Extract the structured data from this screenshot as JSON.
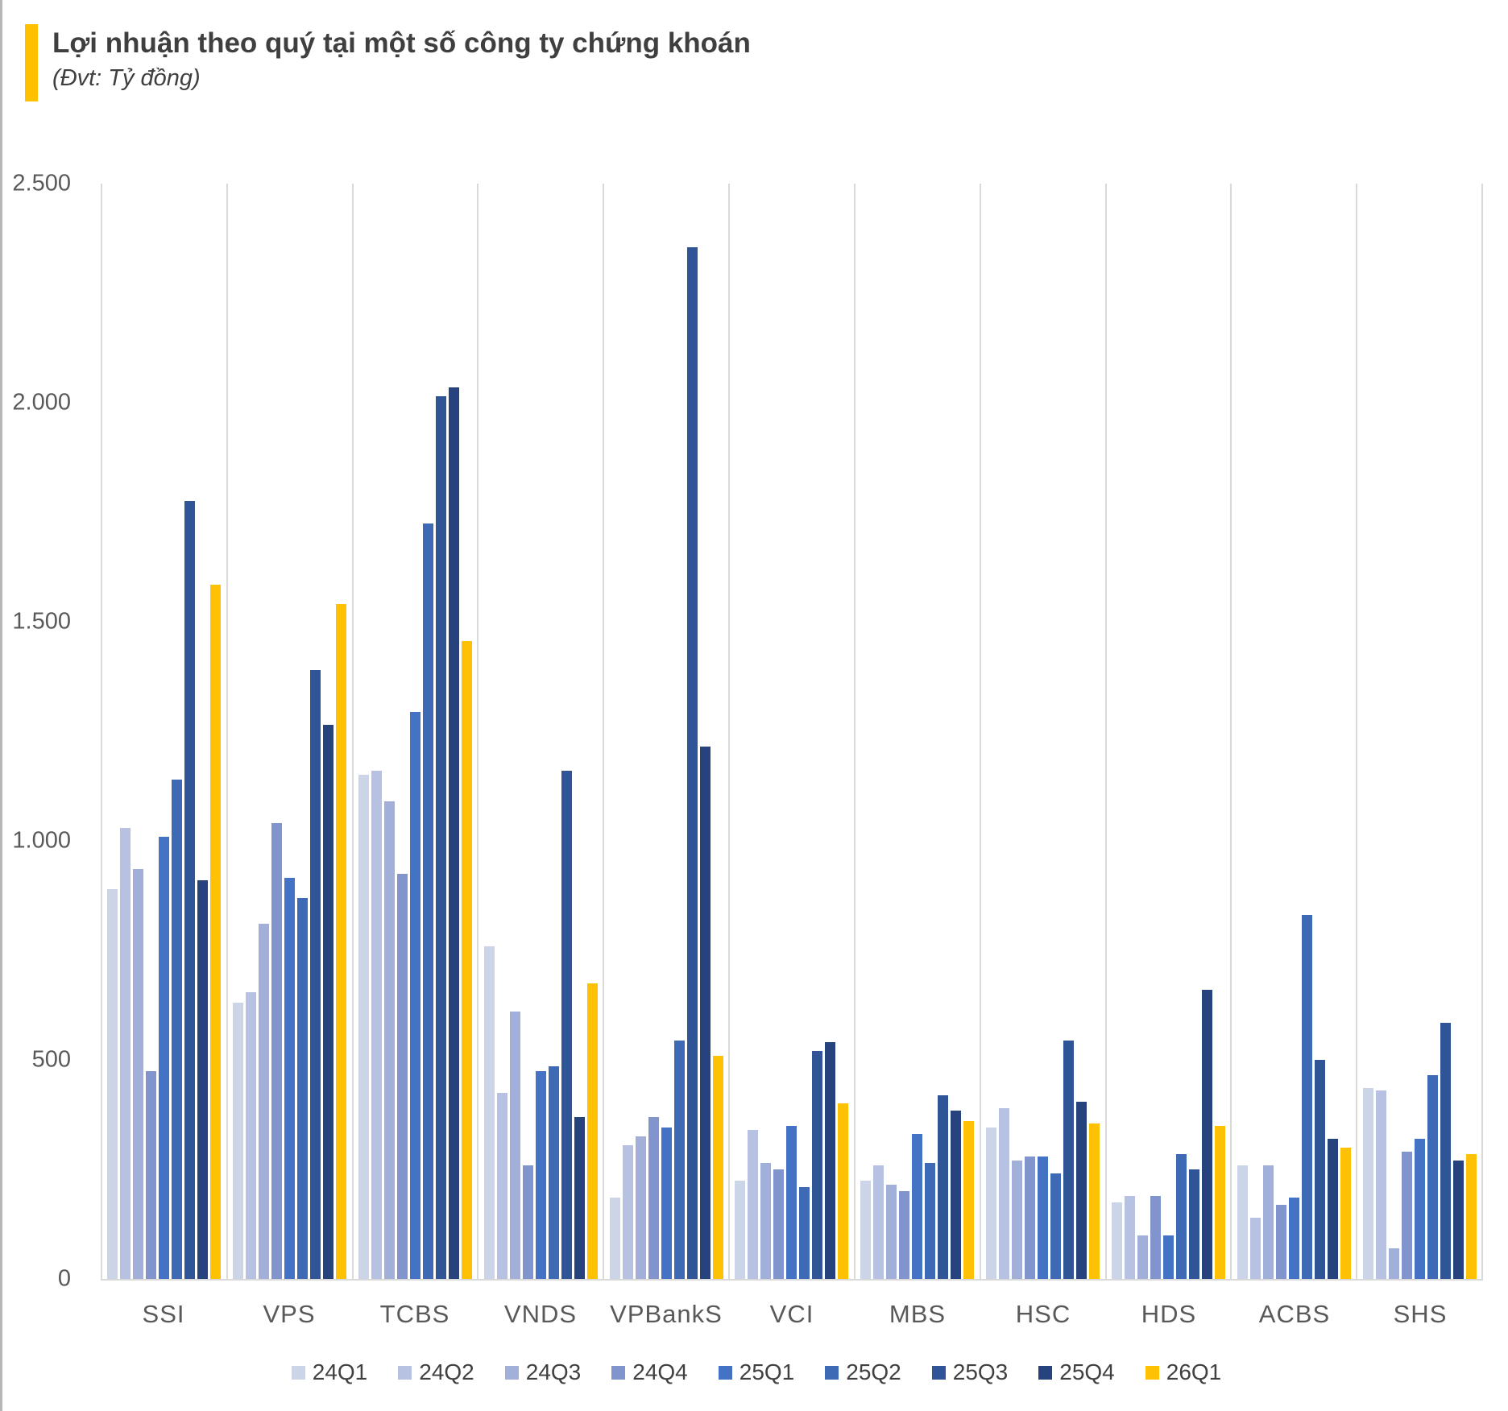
{
  "header": {
    "title": "Lợi nhuận theo quý tại một số công ty chứng khoán",
    "subtitle": "(Đvt: Tỷ đồng)",
    "accent_color": "#ffc000"
  },
  "chart_data": {
    "type": "bar",
    "title": "Lợi nhuận theo quý tại một số công ty chứng khoán",
    "unit_label": "Đvt: Tỷ đồng",
    "categories": [
      "SSI",
      "VPS",
      "TCBS",
      "VNDS",
      "VPBankS",
      "VCI",
      "MBS",
      "HSC",
      "HDS",
      "ACBS",
      "SHS"
    ],
    "series": [
      {
        "name": "24Q1",
        "color": "#ccd4e8",
        "values": [
          890,
          630,
          1150,
          760,
          185,
          225,
          225,
          345,
          175,
          260,
          435
        ]
      },
      {
        "name": "24Q2",
        "color": "#b7c1e1",
        "values": [
          1030,
          655,
          1160,
          425,
          305,
          340,
          260,
          390,
          190,
          140,
          430
        ]
      },
      {
        "name": "24Q3",
        "color": "#a2afd8",
        "values": [
          935,
          810,
          1090,
          610,
          325,
          265,
          215,
          270,
          100,
          260,
          70
        ]
      },
      {
        "name": "24Q4",
        "color": "#8294ce",
        "values": [
          475,
          1040,
          925,
          260,
          370,
          250,
          200,
          280,
          190,
          170,
          290
        ]
      },
      {
        "name": "25Q1",
        "color": "#4472c4",
        "values": [
          1010,
          915,
          1295,
          475,
          345,
          350,
          330,
          280,
          100,
          185,
          320
        ]
      },
      {
        "name": "25Q2",
        "color": "#3e69b5",
        "values": [
          1140,
          870,
          1725,
          485,
          545,
          210,
          265,
          240,
          285,
          830,
          465
        ]
      },
      {
        "name": "25Q3",
        "color": "#2f5597",
        "values": [
          1775,
          1390,
          2015,
          1160,
          2355,
          520,
          420,
          545,
          250,
          500,
          585
        ]
      },
      {
        "name": "25Q4",
        "color": "#26437e",
        "values": [
          910,
          1265,
          2035,
          370,
          1215,
          540,
          385,
          405,
          660,
          320,
          270
        ]
      },
      {
        "name": "26Q1",
        "color": "#ffc103",
        "values": [
          1585,
          1540,
          1455,
          675,
          510,
          400,
          360,
          355,
          350,
          300,
          285
        ]
      }
    ],
    "yaxis": {
      "min": 0,
      "max": 2500,
      "tick_values": [
        2500,
        2000,
        1500,
        1000,
        500,
        0
      ],
      "tick_labels": [
        "2.500",
        "2.000",
        "1.500",
        "1.000",
        "500",
        "0"
      ]
    },
    "grid": "vertical-category-separators",
    "legend_position": "bottom"
  }
}
